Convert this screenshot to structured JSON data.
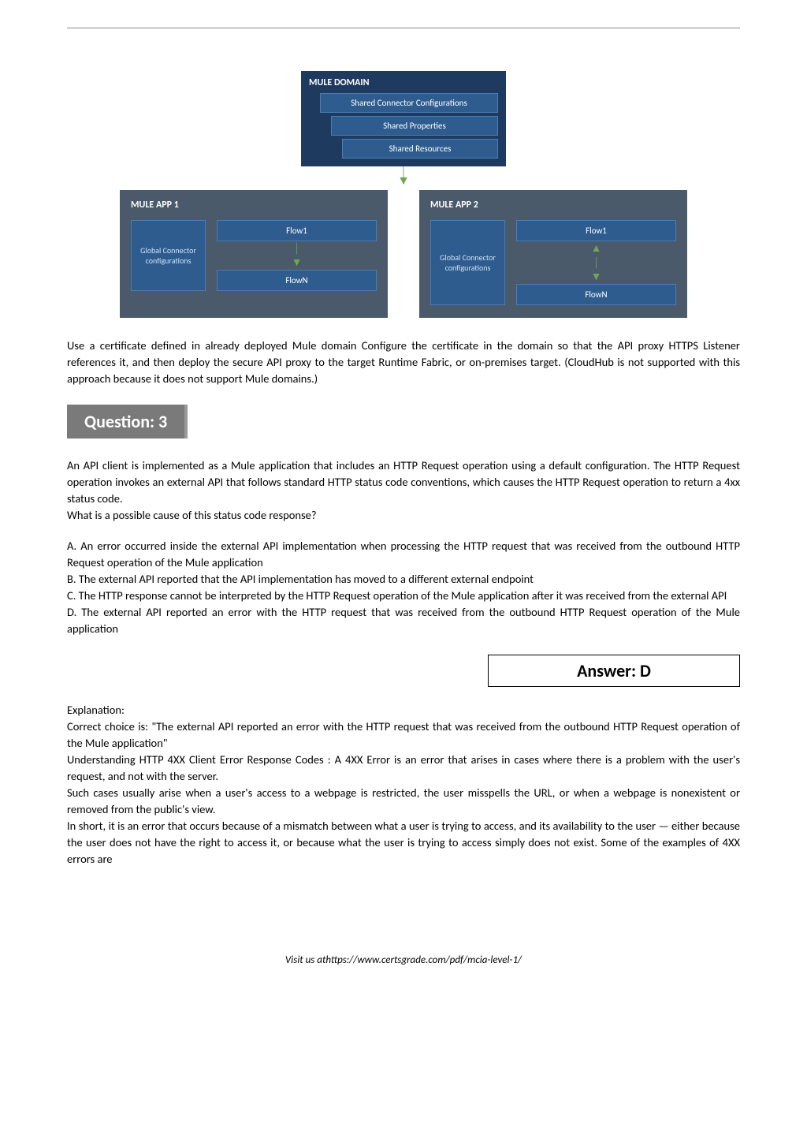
{
  "diagram": {
    "domain": {
      "title": "MULE DOMAIN",
      "boxes": [
        "Shared Connector Configurations",
        "Shared Properties",
        "Shared Resources"
      ],
      "box_bg": "#2e5c8f",
      "box_border": "#4a7db5",
      "domain_bg": "#1f3a5f"
    },
    "apps": [
      {
        "title": "MULE APP 1",
        "gc_label": "Global Connector configurations",
        "flows": [
          "Flow1",
          "FlowN"
        ]
      },
      {
        "title": "MULE APP 2",
        "gc_label": "Global Connector configurations",
        "flows": [
          "Flow1",
          "FlowN"
        ]
      }
    ],
    "app_bg": "#4a5a6a",
    "arrow_color": "#6fa84f"
  },
  "para1": "Use a certificate defined in already deployed Mule domain Configure the certificate in the domain so that the API proxy HTTPS Listener references it, and then deploy the secure API proxy to the target Runtime Fabric, or on-premises target. (CloudHub is not supported with this approach because it does not support Mule domains.)",
  "question_label": "Question: 3",
  "q_body": "An API client is implemented as a Mule application that includes an HTTP Request operation using a default configuration. The HTTP Request operation invokes an external API that follows standard HTTP status code conventions, which causes the HTTP Request operation to return a 4xx status code.",
  "q_prompt": "What is a possible cause of this status code response?",
  "options": {
    "A": "A. An error occurred inside the external API implementation when processing the HTTP request that was received from the outbound HTTP Request operation of the Mule application",
    "B": "B. The external API reported that the API implementation has moved to a different external endpoint",
    "C": "C. The HTTP response cannot be interpreted by the HTTP Request operation of the Mule application after it was received from the external API",
    "D": "D. The external API reported an error with the HTTP request that was received from the outbound HTTP Request operation of the Mule application"
  },
  "answer": "Answer: D",
  "expl_label": "Explanation:",
  "expl": [
    "Correct choice is: \"The external API reported an error with the HTTP request that was received from the outbound HTTP Request operation of the Mule application\"",
    "Understanding HTTP 4XX Client Error Response Codes : A 4XX Error is an error that arises in cases where there is a problem with the user's request, and not with the server.",
    "Such cases usually arise when a user's access to a webpage is restricted, the user misspells the URL, or when a webpage is nonexistent or removed from the public's view.",
    "In short, it is an error that occurs because of a mismatch between what a user is trying to access, and its availability to the user — either because the user does not have the right to access it, or because what the user is trying to access simply does not exist. Some of the examples of 4XX errors are"
  ],
  "footer": "Visit us athttps://www.certsgrade.com/pdf/mcia-level-1/"
}
